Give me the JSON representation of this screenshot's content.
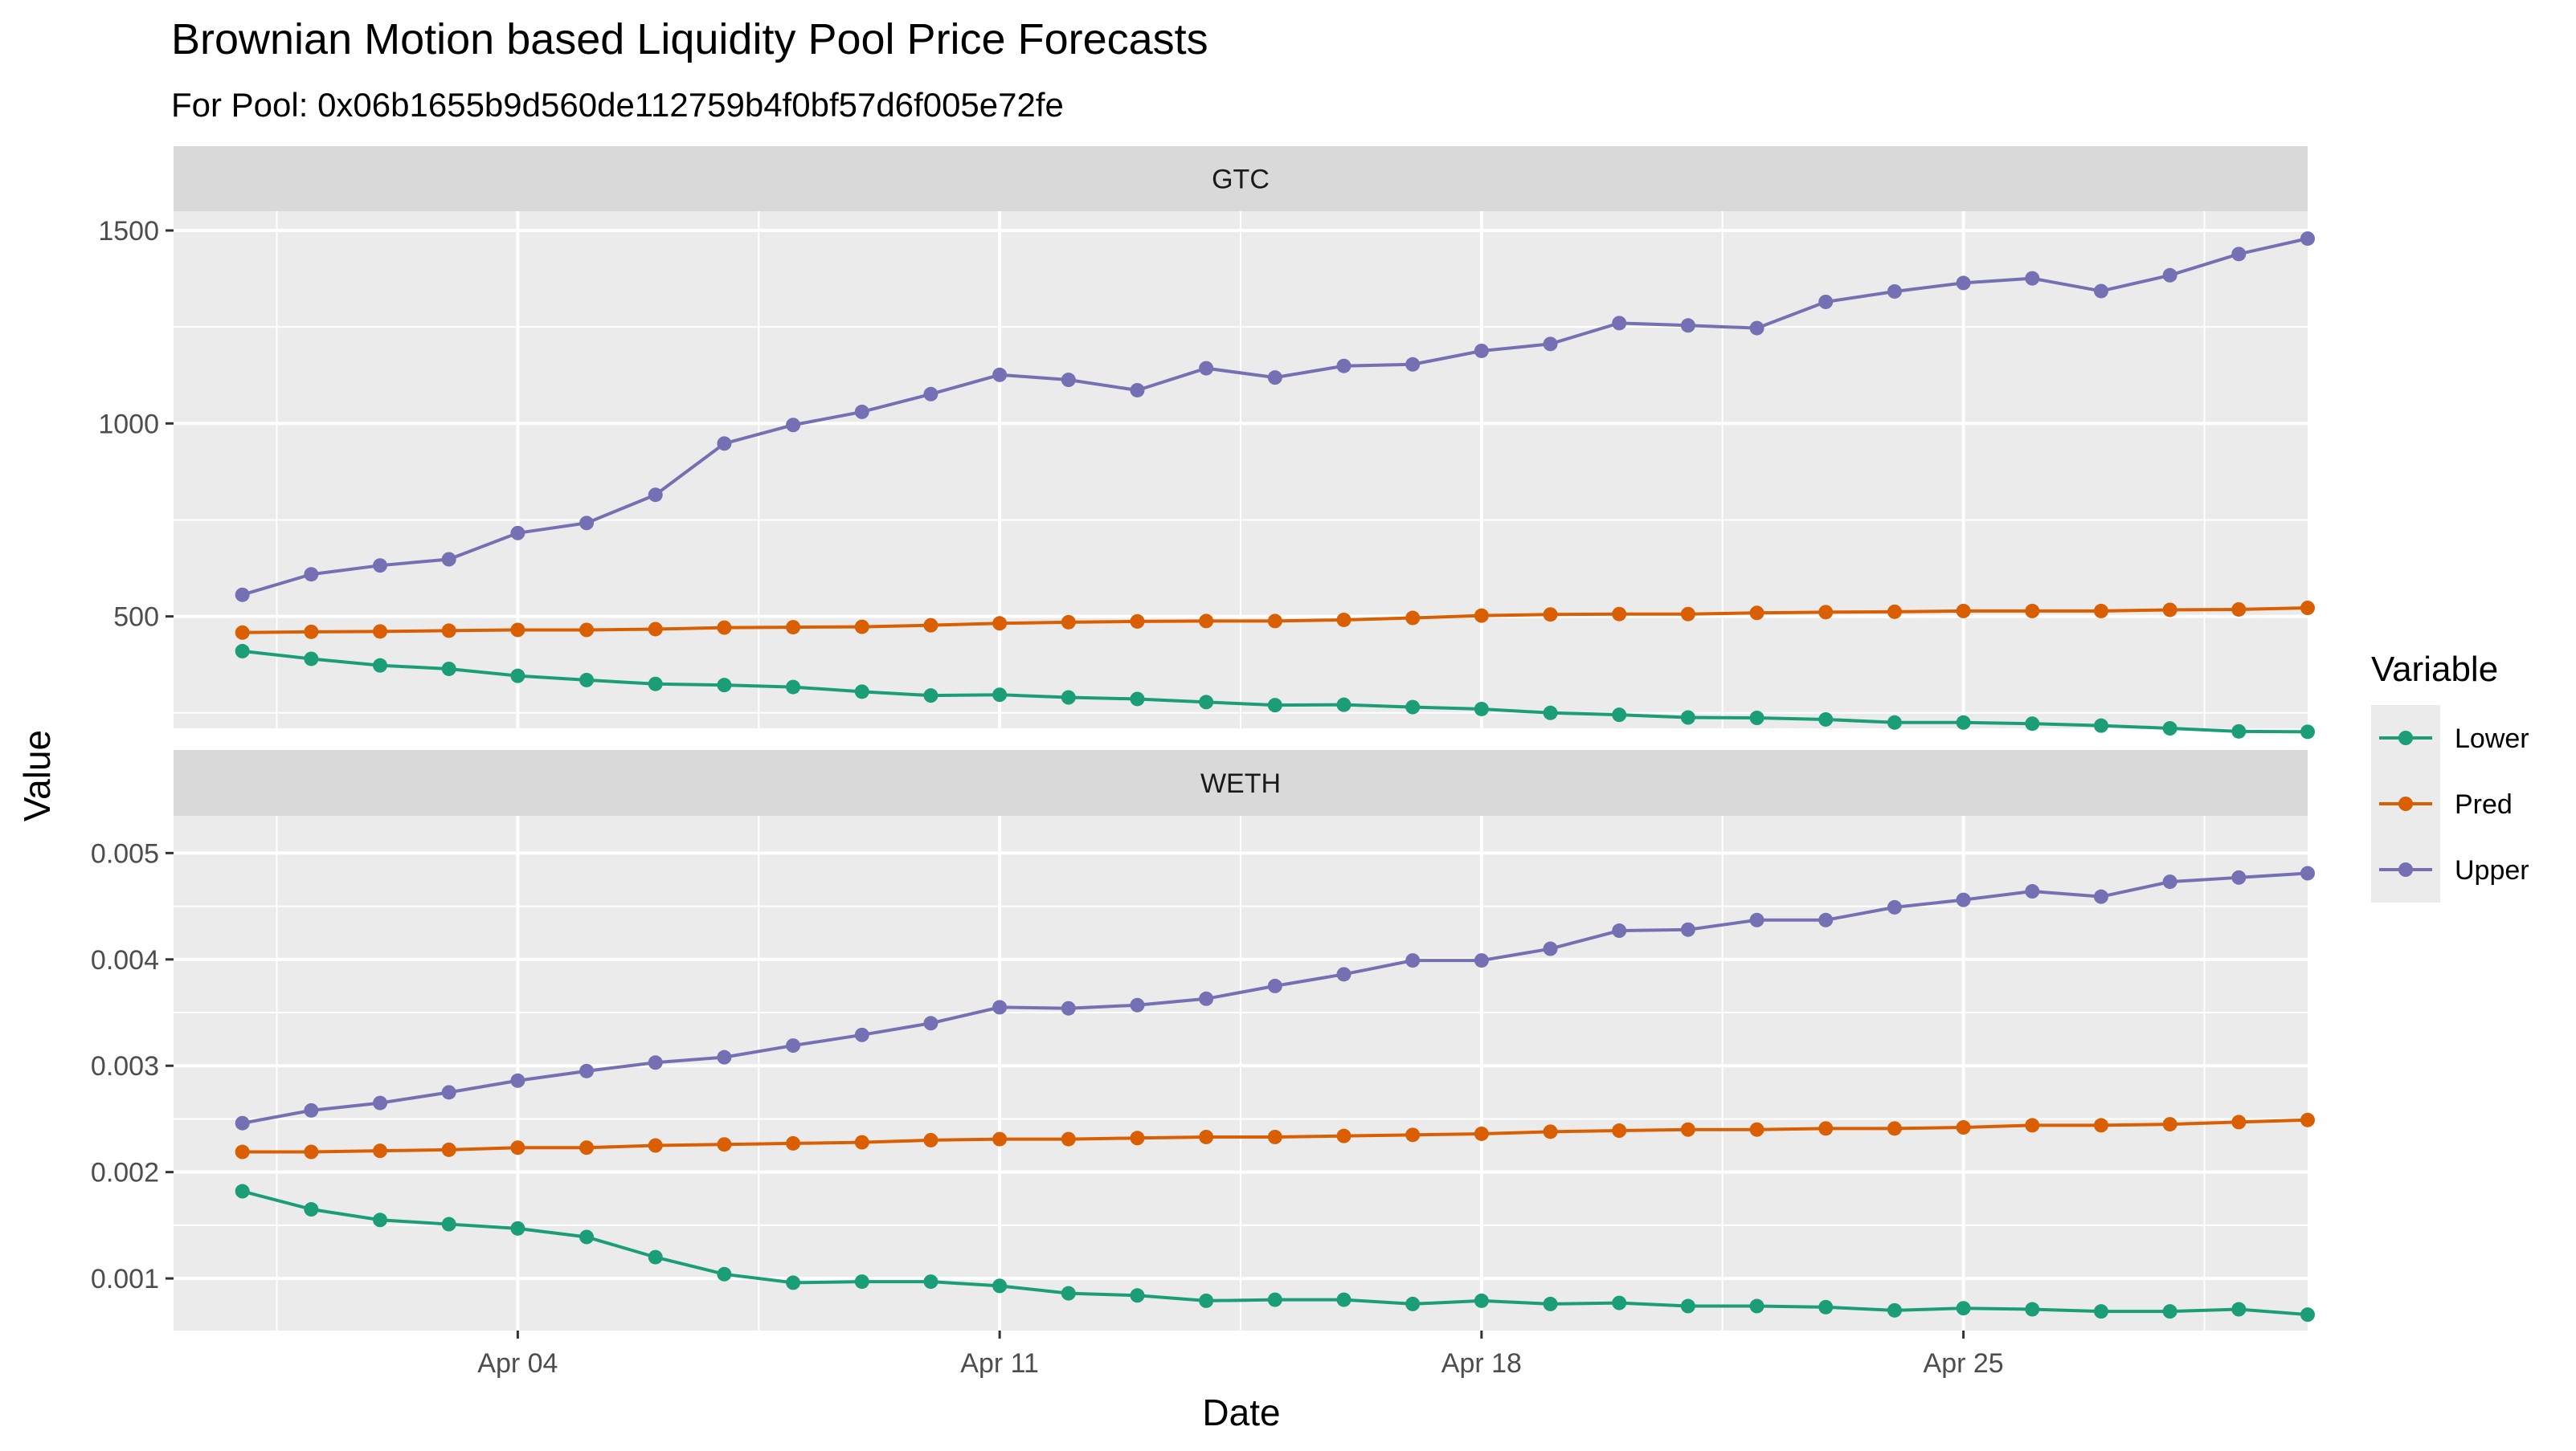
{
  "chart_data": {
    "type": "line",
    "title": "Brownian Motion based Liquidity Pool Price Forecasts",
    "subtitle": "For Pool: 0x06b1655b9d560de112759b4f0bf57d6f005e72fe",
    "xlabel": "Date",
    "ylabel": "Value",
    "x_ticks": [
      "Apr 04",
      "Apr 11",
      "Apr 18",
      "Apr 25"
    ],
    "x_tick_dates": [
      "04-04",
      "04-11",
      "04-18",
      "04-25"
    ],
    "x_range": [
      "03-30",
      "04-30"
    ],
    "grid": true,
    "legend": {
      "title": "Variable",
      "position": "right",
      "entries": [
        "Lower",
        "Pred",
        "Upper"
      ]
    },
    "colors": {
      "Lower": "#1b9e77",
      "Pred": "#d95f02",
      "Upper": "#7570b3"
    },
    "dates": [
      "03-31",
      "04-01",
      "04-02",
      "04-03",
      "04-04",
      "04-05",
      "04-06",
      "04-07",
      "04-08",
      "04-09",
      "04-10",
      "04-11",
      "04-12",
      "04-13",
      "04-14",
      "04-15",
      "04-16",
      "04-17",
      "04-18",
      "04-19",
      "04-20",
      "04-21",
      "04-22",
      "04-23",
      "04-24",
      "04-25",
      "04-26",
      "04-27",
      "04-28",
      "04-29",
      "04-30"
    ],
    "facets": [
      {
        "label": "GTC",
        "y_ticks": [
          "500",
          "1000",
          "1500"
        ],
        "y_tick_values": [
          500,
          1000,
          1500
        ],
        "ylim": [
          210,
          1550
        ],
        "series": [
          {
            "name": "Lower",
            "values": [
              410,
              390,
              373,
              364,
              346,
              335,
              325,
              322,
              317,
              305,
              295,
              297,
              290,
              286,
              278,
              270,
              271,
              265,
              260,
              250,
              245,
              238,
              237,
              233,
              225,
              225,
              222,
              217,
              210,
              202,
              201
            ]
          },
          {
            "name": "Pred",
            "values": [
              458,
              460,
              461,
              463,
              465,
              465,
              467,
              471,
              472,
              473,
              477,
              482,
              485,
              487,
              488,
              488,
              491,
              496,
              502,
              505,
              506,
              506,
              509,
              511,
              512,
              514,
              514,
              514,
              517,
              518,
              522
            ]
          },
          {
            "name": "Upper",
            "values": [
              556,
              609,
              632,
              648,
              716,
              742,
              815,
              948,
              996,
              1030,
              1076,
              1126,
              1113,
              1086,
              1143,
              1119,
              1149,
              1153,
              1188,
              1206,
              1260,
              1254,
              1247,
              1315,
              1342,
              1364,
              1376,
              1343,
              1384,
              1439,
              1479
            ]
          }
        ]
      },
      {
        "label": "WETH",
        "y_ticks": [
          "0.001",
          "0.002",
          "0.003",
          "0.004",
          "0.005"
        ],
        "y_tick_values": [
          0.001,
          0.002,
          0.003,
          0.004,
          0.005
        ],
        "ylim": [
          0.00051,
          0.00535
        ],
        "series": [
          {
            "name": "Lower",
            "values": [
              0.00182,
              0.00165,
              0.00155,
              0.00151,
              0.00147,
              0.00139,
              0.0012,
              0.00104,
              0.00096,
              0.00097,
              0.00097,
              0.00093,
              0.00086,
              0.00084,
              0.00079,
              0.0008,
              0.0008,
              0.00076,
              0.00079,
              0.00076,
              0.00077,
              0.00074,
              0.00074,
              0.00073,
              0.0007,
              0.00072,
              0.00071,
              0.00069,
              0.00069,
              0.00071,
              0.00066
            ]
          },
          {
            "name": "Pred",
            "values": [
              0.00219,
              0.00219,
              0.0022,
              0.00221,
              0.00223,
              0.00223,
              0.00225,
              0.00226,
              0.00227,
              0.00228,
              0.0023,
              0.00231,
              0.00231,
              0.00232,
              0.00233,
              0.00233,
              0.00234,
              0.00235,
              0.00236,
              0.00238,
              0.00239,
              0.0024,
              0.0024,
              0.00241,
              0.00241,
              0.00242,
              0.00244,
              0.00244,
              0.00245,
              0.00247,
              0.00249
            ]
          },
          {
            "name": "Upper",
            "values": [
              0.00246,
              0.00258,
              0.00265,
              0.00275,
              0.00286,
              0.00295,
              0.00303,
              0.00308,
              0.00319,
              0.00329,
              0.0034,
              0.00355,
              0.00354,
              0.00357,
              0.00363,
              0.00375,
              0.00386,
              0.00399,
              0.00399,
              0.0041,
              0.00427,
              0.00428,
              0.00437,
              0.00437,
              0.00449,
              0.00456,
              0.00464,
              0.00459,
              0.00473,
              0.00477,
              0.00481
            ]
          }
        ]
      }
    ]
  }
}
